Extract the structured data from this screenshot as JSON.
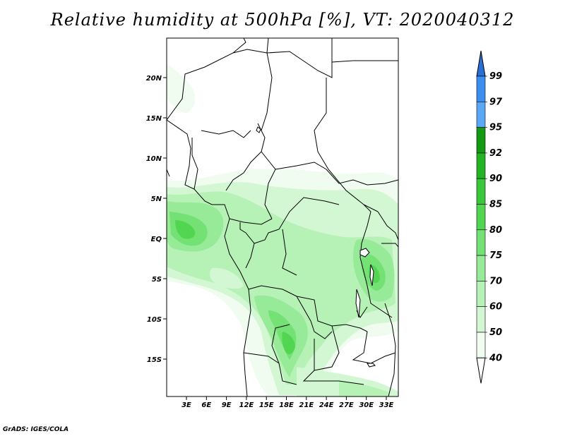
{
  "title": "Relative humidity at 500hPa [%], VT: 2020040312",
  "credit": "GrADS: IGES/COLA",
  "map": {
    "lat_labels": [
      "20N",
      "15N",
      "10N",
      "5N",
      "EQ",
      "5S",
      "10S",
      "15S"
    ],
    "lon_labels": [
      "3E",
      "6E",
      "9E",
      "12E",
      "15E",
      "18E",
      "21E",
      "24E",
      "27E",
      "30E",
      "33E"
    ]
  },
  "colorbar": {
    "levels": [
      "99",
      "97",
      "95",
      "92",
      "90",
      "85",
      "80",
      "75",
      "70",
      "60",
      "50",
      "40"
    ],
    "colors": [
      "#2a6fd6",
      "#3b8ef0",
      "#5aa7f5",
      "#129a12",
      "#23b423",
      "#39c839",
      "#52d652",
      "#74e174",
      "#97ea97",
      "#b6f1b6",
      "#d3f7d3",
      "#effcef"
    ]
  }
}
